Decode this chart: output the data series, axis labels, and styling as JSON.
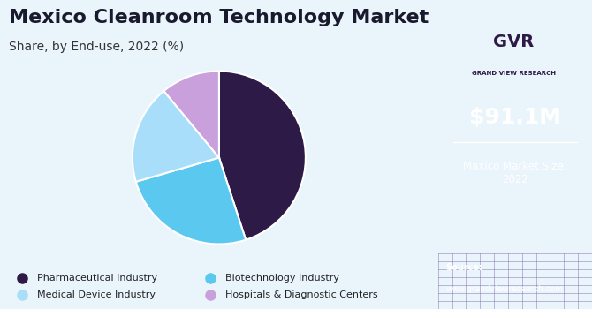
{
  "title": "Mexico Cleanroom Technology Market",
  "subtitle": "Share, by End-use, 2022 (%)",
  "labels": [
    "Pharmaceutical Industry",
    "Biotechnology Industry",
    "Medical Device Industry",
    "Hospitals & Diagnostic Centers"
  ],
  "values": [
    45.0,
    25.5,
    18.5,
    11.0
  ],
  "colors": [
    "#2E1A47",
    "#5BC8F0",
    "#A8DEFA",
    "#C9A0DC"
  ],
  "startangle": 90,
  "legend_labels": [
    "Pharmaceutical Industry",
    "Biotechnology Industry",
    "Medical Device Industry",
    "Hospitals & Diagnostic Centers"
  ],
  "title_fontsize": 16,
  "subtitle_fontsize": 10,
  "bg_color": "#EAF4FB",
  "right_panel_color": "#3B1F5E",
  "market_size_text": "$91.1M",
  "market_size_label": "Maxico Market Size,\n2022",
  "wedge_edge_color": "#ffffff",
  "wedge_linewidth": 1.5
}
